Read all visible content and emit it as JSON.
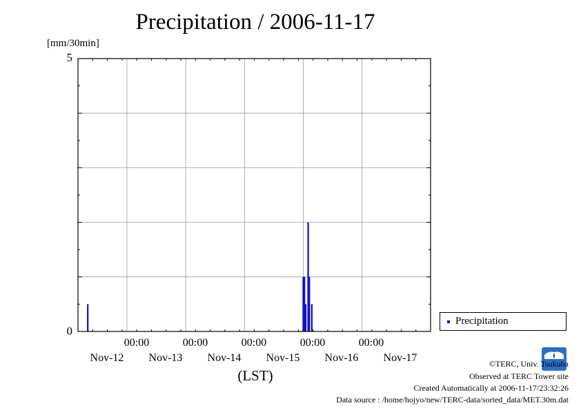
{
  "chart_data": {
    "type": "bar",
    "title": "Precipitation / 2006-11-17",
    "ylabel": "[mm/30min]",
    "xlabel": "(LST)",
    "ylim": [
      0,
      5
    ],
    "y_ticks": [
      "0",
      "5"
    ],
    "x_range_hours": [
      0,
      144
    ],
    "x_time_ticks": [
      "00:00",
      "00:00",
      "00:00",
      "00:00",
      "00:00"
    ],
    "x_day_labels": [
      "Nov-12",
      "Nov-13",
      "Nov-14",
      "Nov-15",
      "Nov-16",
      "Nov-17"
    ],
    "grid": true,
    "legend_position": "right",
    "series": [
      {
        "name": "Precipitation",
        "color": "#1010c0",
        "points": [
          {
            "hours": 4.0,
            "value": 0.5
          },
          {
            "hours": 92.0,
            "value": 1.0
          },
          {
            "hours": 92.5,
            "value": 1.0
          },
          {
            "hours": 93.0,
            "value": 0.5
          },
          {
            "hours": 94.0,
            "value": 2.0
          },
          {
            "hours": 94.5,
            "value": 1.0
          },
          {
            "hours": 95.5,
            "value": 0.5
          }
        ]
      }
    ]
  },
  "credits": {
    "line1": "©TERC, Univ. Tsukuba",
    "line2": "Observed at TERC Tower site",
    "line3": "Created Automatically at 2006-11-17/23:32:26",
    "line4": "Data source : /home/hojyo/new/TERC-data/sorted_data/MET.30m.dat"
  },
  "logo": {
    "text": "TERC"
  }
}
